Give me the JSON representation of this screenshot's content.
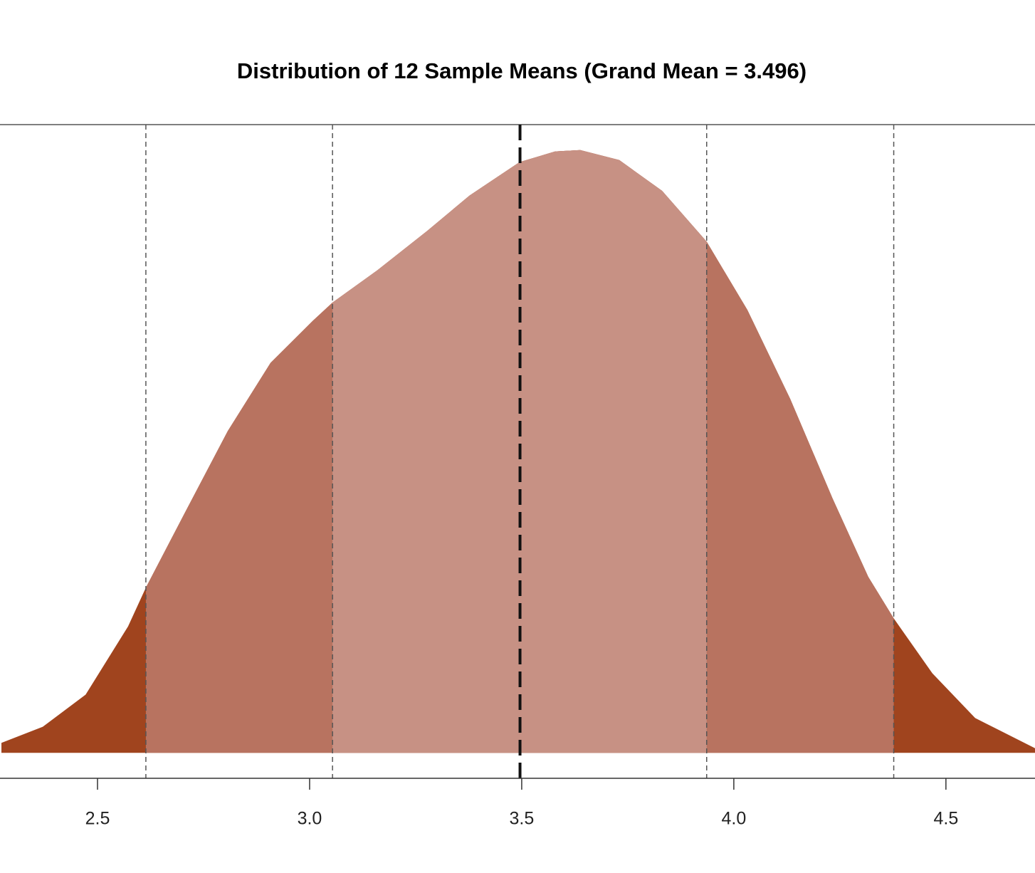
{
  "chart_data": {
    "type": "density",
    "title": "Distribution of 12 Sample Means (Grand Mean = 3.496)",
    "x": [
      2.2735,
      2.371,
      2.472,
      2.572,
      2.614,
      2.706,
      2.807,
      2.908,
      3.008,
      3.054,
      3.159,
      3.277,
      3.377,
      3.495,
      3.579,
      3.638,
      3.73,
      3.831,
      3.936,
      4.032,
      4.133,
      4.233,
      4.317,
      4.377,
      4.468,
      4.569,
      4.71
    ],
    "values": [
      0.015,
      0.039,
      0.087,
      0.189,
      0.247,
      0.359,
      0.481,
      0.583,
      0.646,
      0.673,
      0.721,
      0.78,
      0.833,
      0.883,
      0.899,
      0.901,
      0.886,
      0.84,
      0.764,
      0.662,
      0.529,
      0.38,
      0.263,
      0.201,
      0.119,
      0.052,
      0.007
    ],
    "mean_line": 3.496,
    "sd_lines": [
      2.614,
      3.054,
      3.936,
      4.377
    ],
    "band_colors": [
      "#c79184",
      "#b87360",
      "#a0441e"
    ],
    "xlim": [
      2.2735,
      4.71
    ],
    "ylim": [
      -0.038,
      0.939
    ],
    "xticks": [
      2.5,
      {
        "value": 3,
        "label": "3.0"
      },
      3.5,
      {
        "value": 4,
        "label": "4.0"
      },
      4.5
    ]
  }
}
